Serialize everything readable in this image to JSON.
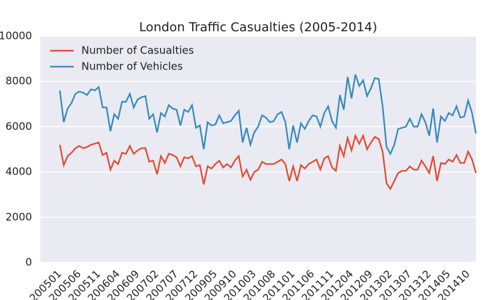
{
  "chart_data": {
    "type": "line",
    "title": "London Traffic Casualties (2005-2014)",
    "categories": [
      "200501",
      null,
      null,
      null,
      null,
      "200506",
      null,
      null,
      null,
      null,
      "200511",
      null,
      null,
      null,
      null,
      "200604",
      null,
      null,
      null,
      null,
      "200609",
      null,
      null,
      null,
      null,
      "200702",
      null,
      null,
      null,
      null,
      "200707",
      null,
      null,
      null,
      null,
      "200712",
      null,
      null,
      null,
      null,
      "200905",
      null,
      null,
      null,
      null,
      "200910",
      null,
      null,
      null,
      null,
      "201003",
      null,
      null,
      null,
      null,
      "201008",
      null,
      null,
      null,
      null,
      "201101",
      null,
      null,
      null,
      null,
      "201106",
      null,
      null,
      null,
      null,
      "201111",
      null,
      null,
      null,
      null,
      "201204",
      null,
      null,
      null,
      null,
      "201209",
      null,
      null,
      null,
      null,
      "201302",
      null,
      null,
      null,
      null,
      "201307",
      null,
      null,
      null,
      null,
      "201312",
      null,
      null,
      null,
      null,
      "201405",
      null,
      null,
      null,
      null,
      "201410",
      null,
      null
    ],
    "series": [
      {
        "name": "Number of Casualties",
        "color": "#e24a33",
        "values": [
          5200,
          4300,
          4700,
          4850,
          5050,
          5150,
          5050,
          5100,
          5200,
          5250,
          5300,
          4750,
          4850,
          4100,
          4500,
          4350,
          4850,
          4800,
          5150,
          4800,
          4950,
          5050,
          5050,
          4450,
          4500,
          3900,
          4700,
          4400,
          4800,
          4750,
          4650,
          4250,
          4650,
          4600,
          4700,
          4250,
          4300,
          3450,
          4250,
          4150,
          4350,
          4500,
          4200,
          4350,
          4200,
          4500,
          4700,
          3800,
          4100,
          3650,
          4000,
          4100,
          4450,
          4350,
          4350,
          4350,
          4450,
          4550,
          4350,
          3600,
          4250,
          3600,
          4300,
          4150,
          4350,
          4450,
          4550,
          4100,
          4600,
          4700,
          4200,
          4050,
          5150,
          4700,
          5500,
          4950,
          5600,
          5250,
          5600,
          5000,
          5300,
          5550,
          5450,
          4900,
          3500,
          3250,
          3600,
          3950,
          4050,
          4050,
          4250,
          4100,
          4100,
          4500,
          4250,
          3950,
          4700,
          3600,
          4400,
          4350,
          4550,
          4450,
          4750,
          4400,
          4400,
          4900,
          4550,
          3950
        ]
      },
      {
        "name": "Number of Vehicles",
        "color": "#348abd",
        "values": [
          7600,
          6200,
          6800,
          7050,
          7450,
          7550,
          7500,
          7400,
          7650,
          7600,
          7750,
          6850,
          6850,
          5800,
          6550,
          6350,
          7100,
          7100,
          7450,
          6850,
          7200,
          7300,
          7350,
          6350,
          6550,
          5750,
          6600,
          6450,
          6950,
          6800,
          6750,
          6050,
          6750,
          6650,
          6950,
          5950,
          6050,
          5000,
          6200,
          6050,
          6100,
          6500,
          6150,
          6200,
          6250,
          6500,
          6700,
          5300,
          5950,
          5200,
          5750,
          6000,
          6500,
          6400,
          6200,
          6250,
          6550,
          6650,
          6200,
          5000,
          6050,
          5300,
          6150,
          5900,
          6250,
          6500,
          6450,
          6000,
          6600,
          6900,
          6250,
          5950,
          7400,
          6750,
          8200,
          7250,
          8300,
          7800,
          8050,
          7350,
          7700,
          8150,
          8100,
          6900,
          5100,
          4800,
          5200,
          5900,
          5950,
          6000,
          6350,
          6000,
          6000,
          6550,
          6200,
          5600,
          6800,
          5300,
          6450,
          6250,
          6600,
          6500,
          6900,
          6400,
          6450,
          7150,
          6600,
          5700
        ]
      }
    ],
    "ylim": [
      0,
      10000
    ],
    "yticks": [
      0,
      2000,
      4000,
      6000,
      8000,
      10000
    ],
    "grid": true,
    "legend": "upper left"
  }
}
